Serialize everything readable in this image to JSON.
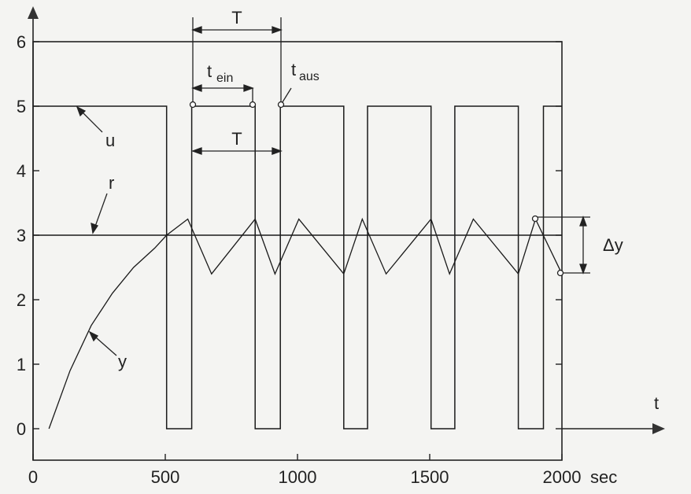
{
  "chart_data": {
    "type": "line",
    "xlabel": "t",
    "x_unit": "sec",
    "xlim": [
      0,
      2000
    ],
    "ylim": [
      0,
      6
    ],
    "x_ticks": [
      "0",
      "500",
      "1000",
      "1500",
      "2000"
    ],
    "y_ticks": [
      "0",
      "1",
      "2",
      "3",
      "4",
      "5",
      "6"
    ],
    "series": [
      {
        "name": "u",
        "step": true,
        "x": [
          0,
          505,
          505,
          600,
          600,
          840,
          840,
          935,
          935,
          1175,
          1175,
          1265,
          1265,
          1505,
          1505,
          1595,
          1595,
          1835,
          1835,
          1930,
          1930,
          2000
        ],
        "y": [
          5,
          5,
          0,
          0,
          5,
          5,
          0,
          0,
          5,
          5,
          0,
          0,
          5,
          5,
          0,
          0,
          5,
          5,
          0,
          0,
          5,
          5
        ]
      },
      {
        "name": "r",
        "x": [
          0,
          2000
        ],
        "y": [
          3,
          3
        ]
      },
      {
        "name": "y",
        "x": [
          60,
          140,
          220,
          300,
          380,
          460,
          505,
          585,
          675,
          840,
          915,
          1005,
          1175,
          1245,
          1335,
          1505,
          1575,
          1665,
          1835,
          1900,
          2000
        ],
        "y": [
          0,
          0.9,
          1.6,
          2.1,
          2.5,
          2.8,
          3.0,
          3.25,
          2.4,
          3.25,
          2.4,
          3.25,
          2.4,
          3.25,
          2.4,
          3.25,
          2.4,
          3.25,
          2.4,
          3.25,
          2.4
        ]
      }
    ],
    "annotations": {
      "T_top": "T",
      "T_mid": "T",
      "t_ein": "t",
      "t_ein_sub": "ein",
      "t_aus": "t",
      "t_aus_sub": "aus",
      "label_u": "u",
      "label_r": "r",
      "label_y": "y",
      "delta_y": "Δy",
      "t_arrow": "t",
      "sec": "sec"
    },
    "grid": false
  }
}
